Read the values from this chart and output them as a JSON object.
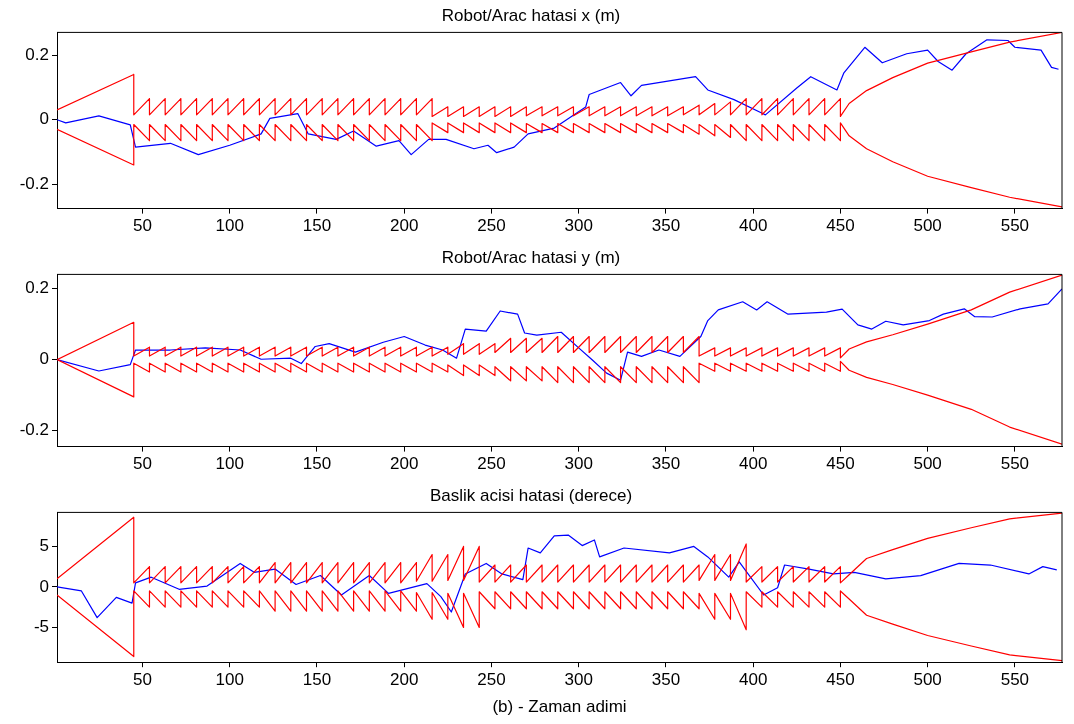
{
  "chart_data": [
    {
      "type": "line",
      "title": "Robot/Arac hatasi x (m)",
      "xlim": [
        1,
        577
      ],
      "xticks": [
        50,
        100,
        150,
        200,
        250,
        300,
        350,
        400,
        450,
        500,
        550
      ],
      "ylim": [
        -0.275,
        0.27
      ],
      "yticks": [
        -0.2,
        0,
        0.2
      ],
      "series": [
        {
          "color": "#ff0000",
          "x": [
            1,
            45,
            45,
            54,
            54,
            63,
            63,
            72,
            72,
            81,
            81,
            90,
            90,
            99,
            99,
            108,
            108,
            117,
            117,
            126,
            126,
            135,
            135,
            144,
            144,
            153,
            153,
            162,
            162,
            171,
            171,
            180,
            180,
            189,
            189,
            198,
            198,
            207,
            207,
            216,
            216,
            225,
            225,
            234,
            234,
            243,
            243,
            252,
            252,
            261,
            261,
            270,
            270,
            279,
            279,
            288,
            288,
            297,
            297,
            306,
            306,
            315,
            315,
            324,
            324,
            333,
            333,
            342,
            342,
            351,
            351,
            360,
            360,
            369,
            369,
            378,
            378,
            387,
            387,
            396,
            396,
            405,
            405,
            414,
            414,
            423,
            423,
            432,
            432,
            441,
            441,
            450,
            450,
            455,
            465,
            480,
            500,
            525,
            547,
            577
          ],
          "values": [
            0.03,
            0.14,
            0.015,
            0.065,
            0.015,
            0.065,
            0.015,
            0.065,
            0.015,
            0.065,
            0.015,
            0.065,
            0.015,
            0.065,
            0.015,
            0.065,
            0.015,
            0.065,
            0.015,
            0.065,
            0.015,
            0.065,
            0.015,
            0.065,
            0.015,
            0.065,
            0.015,
            0.065,
            0.015,
            0.065,
            0.015,
            0.065,
            0.015,
            0.065,
            0.015,
            0.065,
            0.015,
            0.065,
            0.015,
            0.065,
            0.01,
            0.04,
            0.01,
            0.04,
            0.01,
            0.04,
            0.01,
            0.04,
            0.01,
            0.04,
            0.01,
            0.04,
            0.012,
            0.04,
            0.012,
            0.04,
            0.012,
            0.04,
            0.012,
            0.04,
            0.012,
            0.04,
            0.012,
            0.04,
            0.012,
            0.04,
            0.012,
            0.04,
            0.012,
            0.04,
            0.012,
            0.04,
            0.015,
            0.045,
            0.015,
            0.05,
            0.015,
            0.055,
            0.015,
            0.065,
            0.015,
            0.065,
            0.015,
            0.065,
            0.015,
            0.065,
            0.015,
            0.065,
            0.015,
            0.065,
            0.015,
            0.065,
            0.01,
            0.05,
            0.09,
            0.13,
            0.175,
            0.21,
            0.24,
            0.27
          ]
        },
        {
          "color": "#ff0000",
          "x": [
            1,
            45,
            45,
            54,
            54,
            63,
            63,
            72,
            72,
            81,
            81,
            90,
            90,
            99,
            99,
            108,
            108,
            117,
            117,
            126,
            126,
            135,
            135,
            144,
            144,
            153,
            153,
            162,
            162,
            171,
            171,
            180,
            180,
            189,
            189,
            198,
            198,
            207,
            207,
            216,
            216,
            225,
            225,
            234,
            234,
            243,
            243,
            252,
            252,
            261,
            261,
            270,
            270,
            279,
            279,
            288,
            288,
            297,
            297,
            306,
            306,
            315,
            315,
            324,
            324,
            333,
            333,
            342,
            342,
            351,
            351,
            360,
            360,
            369,
            369,
            378,
            378,
            387,
            387,
            396,
            396,
            405,
            405,
            414,
            414,
            423,
            423,
            432,
            432,
            441,
            441,
            450,
            450,
            455,
            465,
            480,
            500,
            525,
            547,
            577
          ],
          "values": [
            -0.03,
            -0.14,
            -0.015,
            -0.065,
            -0.015,
            -0.065,
            -0.015,
            -0.065,
            -0.015,
            -0.065,
            -0.015,
            -0.065,
            -0.015,
            -0.065,
            -0.015,
            -0.065,
            -0.015,
            -0.065,
            -0.015,
            -0.065,
            -0.015,
            -0.065,
            -0.015,
            -0.065,
            -0.015,
            -0.065,
            -0.015,
            -0.065,
            -0.015,
            -0.065,
            -0.015,
            -0.065,
            -0.015,
            -0.065,
            -0.015,
            -0.065,
            -0.015,
            -0.065,
            -0.015,
            -0.065,
            -0.01,
            -0.04,
            -0.01,
            -0.04,
            -0.01,
            -0.04,
            -0.01,
            -0.04,
            -0.01,
            -0.04,
            -0.01,
            -0.04,
            -0.012,
            -0.04,
            -0.012,
            -0.04,
            -0.012,
            -0.04,
            -0.012,
            -0.04,
            -0.012,
            -0.04,
            -0.012,
            -0.04,
            -0.012,
            -0.04,
            -0.012,
            -0.04,
            -0.012,
            -0.04,
            -0.012,
            -0.04,
            -0.015,
            -0.045,
            -0.015,
            -0.05,
            -0.015,
            -0.055,
            -0.015,
            -0.065,
            -0.015,
            -0.065,
            -0.015,
            -0.065,
            -0.015,
            -0.065,
            -0.015,
            -0.065,
            -0.015,
            -0.065,
            -0.015,
            -0.065,
            -0.01,
            -0.05,
            -0.09,
            -0.13,
            -0.175,
            -0.21,
            -0.24,
            -0.27
          ]
        },
        {
          "color": "#0000ff",
          "x": [
            1,
            6,
            25,
            43,
            46,
            66,
            82,
            100,
            118,
            123,
            139,
            145,
            161,
            171,
            184,
            197,
            204,
            214,
            224,
            240,
            248,
            253,
            263,
            271,
            286,
            304,
            306,
            324,
            330,
            336,
            367,
            374,
            389,
            407,
            425,
            433,
            448,
            452,
            464,
            474,
            488,
            500,
            506,
            514,
            522,
            534,
            546,
            550,
            565,
            571,
            575
          ],
          "values": [
            0,
            -0.01,
            0.012,
            -0.016,
            -0.085,
            -0.073,
            -0.108,
            -0.079,
            -0.044,
            0.004,
            0.019,
            -0.044,
            -0.061,
            -0.035,
            -0.082,
            -0.065,
            -0.108,
            -0.061,
            -0.061,
            -0.09,
            -0.079,
            -0.102,
            -0.085,
            -0.044,
            -0.026,
            0.039,
            0.078,
            0.115,
            0.074,
            0.106,
            0.133,
            0.092,
            0.062,
            0.015,
            0.098,
            0.133,
            0.092,
            0.145,
            0.224,
            0.176,
            0.204,
            0.215,
            0.18,
            0.153,
            0.204,
            0.247,
            0.245,
            0.224,
            0.215,
            0.162,
            0.156
          ]
        }
      ]
    },
    {
      "type": "line",
      "title": "Robot/Arac hatasi y (m)",
      "xlim": [
        1,
        577
      ],
      "xticks": [
        50,
        100,
        150,
        200,
        250,
        300,
        350,
        400,
        450,
        500,
        550
      ],
      "ylim": [
        -0.245,
        0.24
      ],
      "yticks": [
        -0.2,
        0,
        0.2
      ],
      "series": [
        {
          "color": "#ff0000",
          "x": [
            1,
            45,
            45,
            54,
            54,
            63,
            63,
            72,
            72,
            81,
            81,
            90,
            90,
            99,
            99,
            108,
            108,
            117,
            117,
            126,
            126,
            135,
            135,
            144,
            144,
            153,
            153,
            162,
            162,
            171,
            171,
            180,
            180,
            189,
            189,
            198,
            198,
            207,
            207,
            216,
            216,
            225,
            225,
            234,
            234,
            243,
            243,
            252,
            252,
            261,
            261,
            270,
            270,
            279,
            279,
            288,
            288,
            297,
            297,
            306,
            306,
            315,
            315,
            324,
            324,
            333,
            333,
            342,
            342,
            351,
            351,
            360,
            360,
            369,
            369,
            378,
            378,
            387,
            387,
            396,
            396,
            405,
            405,
            414,
            414,
            423,
            423,
            432,
            432,
            441,
            441,
            450,
            450,
            455,
            465,
            480,
            500,
            525,
            547,
            577
          ],
          "values": [
            0,
            0.105,
            0.01,
            0.035,
            0.01,
            0.035,
            0.01,
            0.035,
            0.01,
            0.035,
            0.01,
            0.035,
            0.01,
            0.035,
            0.01,
            0.035,
            0.01,
            0.035,
            0.01,
            0.035,
            0.01,
            0.035,
            0.01,
            0.035,
            0.01,
            0.035,
            0.01,
            0.035,
            0.01,
            0.035,
            0.01,
            0.035,
            0.01,
            0.035,
            0.01,
            0.035,
            0.01,
            0.035,
            0.01,
            0.035,
            0.01,
            0.035,
            0.015,
            0.045,
            0.015,
            0.045,
            0.015,
            0.045,
            0.02,
            0.06,
            0.02,
            0.06,
            0.02,
            0.06,
            0.02,
            0.065,
            0.02,
            0.065,
            0.02,
            0.065,
            0.02,
            0.065,
            0.02,
            0.065,
            0.02,
            0.065,
            0.02,
            0.065,
            0.02,
            0.065,
            0.02,
            0.065,
            0.02,
            0.065,
            0.01,
            0.033,
            0.01,
            0.033,
            0.01,
            0.033,
            0.01,
            0.033,
            0.01,
            0.033,
            0.01,
            0.033,
            0.01,
            0.033,
            0.01,
            0.033,
            0.01,
            0.033,
            0.005,
            0.03,
            0.05,
            0.07,
            0.1,
            0.14,
            0.19,
            0.238
          ]
        },
        {
          "color": "#ff0000",
          "x": [
            1,
            45,
            45,
            54,
            54,
            63,
            63,
            72,
            72,
            81,
            81,
            90,
            90,
            99,
            99,
            108,
            108,
            117,
            117,
            126,
            126,
            135,
            135,
            144,
            144,
            153,
            153,
            162,
            162,
            171,
            171,
            180,
            180,
            189,
            189,
            198,
            198,
            207,
            207,
            216,
            216,
            225,
            225,
            234,
            234,
            243,
            243,
            252,
            252,
            261,
            261,
            270,
            270,
            279,
            279,
            288,
            288,
            297,
            297,
            306,
            306,
            315,
            315,
            324,
            324,
            333,
            333,
            342,
            342,
            351,
            351,
            360,
            360,
            369,
            369,
            378,
            378,
            387,
            387,
            396,
            396,
            405,
            405,
            414,
            414,
            423,
            423,
            432,
            432,
            441,
            441,
            450,
            450,
            455,
            465,
            480,
            500,
            525,
            547,
            577
          ],
          "values": [
            0,
            -0.105,
            -0.01,
            -0.035,
            -0.01,
            -0.035,
            -0.01,
            -0.035,
            -0.01,
            -0.035,
            -0.01,
            -0.035,
            -0.01,
            -0.035,
            -0.01,
            -0.035,
            -0.01,
            -0.035,
            -0.01,
            -0.035,
            -0.01,
            -0.035,
            -0.01,
            -0.035,
            -0.01,
            -0.035,
            -0.01,
            -0.035,
            -0.01,
            -0.035,
            -0.01,
            -0.035,
            -0.01,
            -0.035,
            -0.01,
            -0.035,
            -0.01,
            -0.035,
            -0.01,
            -0.035,
            -0.01,
            -0.035,
            -0.015,
            -0.045,
            -0.015,
            -0.045,
            -0.015,
            -0.045,
            -0.02,
            -0.06,
            -0.02,
            -0.06,
            -0.02,
            -0.06,
            -0.02,
            -0.065,
            -0.02,
            -0.065,
            -0.02,
            -0.065,
            -0.02,
            -0.065,
            -0.02,
            -0.065,
            -0.02,
            -0.065,
            -0.02,
            -0.065,
            -0.02,
            -0.065,
            -0.02,
            -0.065,
            -0.02,
            -0.065,
            -0.01,
            -0.033,
            -0.01,
            -0.033,
            -0.01,
            -0.033,
            -0.01,
            -0.033,
            -0.01,
            -0.033,
            -0.01,
            -0.033,
            -0.01,
            -0.033,
            -0.01,
            -0.033,
            -0.01,
            -0.033,
            -0.005,
            -0.03,
            -0.05,
            -0.07,
            -0.1,
            -0.14,
            -0.19,
            -0.238
          ]
        },
        {
          "color": "#0000ff",
          "x": [
            1,
            25,
            43,
            46,
            66,
            86,
            106,
            118,
            135,
            141,
            149,
            157,
            172,
            188,
            200,
            212,
            222,
            230,
            235,
            247,
            255,
            265,
            269,
            276,
            290,
            300,
            308,
            316,
            324,
            328,
            336,
            346,
            358,
            370,
            374,
            380,
            394,
            402,
            408,
            420,
            442,
            451,
            460,
            468,
            476,
            486,
            501,
            509,
            521,
            527,
            537,
            553,
            569,
            577
          ],
          "values": [
            0,
            -0.032,
            -0.014,
            0.027,
            0.027,
            0.033,
            0.027,
            0.001,
            0.004,
            -0.011,
            0.037,
            0.045,
            0.021,
            0.049,
            0.065,
            0.041,
            0.027,
            0.004,
            0.086,
            0.08,
            0.137,
            0.128,
            0.075,
            0.069,
            0.077,
            0.033,
            -0.002,
            -0.038,
            -0.058,
            0.021,
            0.009,
            0.027,
            0.009,
            0.065,
            0.11,
            0.14,
            0.163,
            0.14,
            0.163,
            0.128,
            0.134,
            0.142,
            0.098,
            0.086,
            0.108,
            0.098,
            0.11,
            0.128,
            0.143,
            0.121,
            0.12,
            0.143,
            0.157,
            0.199
          ]
        }
      ]
    },
    {
      "type": "line",
      "title": "Baslik acisi hatasi (derece)",
      "xlabel": "(b) - Zaman adimi",
      "xlim": [
        1,
        577
      ],
      "xticks": [
        50,
        100,
        150,
        200,
        250,
        300,
        350,
        400,
        450,
        500,
        550
      ],
      "ylim": [
        -9.3,
        9.2
      ],
      "yticks": [
        -5,
        0,
        5
      ],
      "series": [
        {
          "color": "#ff0000",
          "x": [
            1,
            45,
            45,
            54,
            54,
            63,
            63,
            72,
            72,
            81,
            81,
            90,
            90,
            99,
            99,
            108,
            108,
            117,
            117,
            126,
            126,
            135,
            135,
            144,
            144,
            153,
            153,
            162,
            162,
            171,
            171,
            180,
            180,
            189,
            189,
            198,
            198,
            207,
            207,
            216,
            216,
            225,
            225,
            234,
            234,
            243,
            243,
            252,
            252,
            261,
            261,
            270,
            270,
            279,
            279,
            288,
            288,
            297,
            297,
            306,
            306,
            315,
            315,
            324,
            324,
            333,
            333,
            342,
            342,
            351,
            351,
            360,
            360,
            369,
            369,
            378,
            378,
            387,
            387,
            396,
            396,
            405,
            405,
            414,
            414,
            423,
            423,
            432,
            432,
            441,
            441,
            450,
            450,
            455,
            465,
            480,
            500,
            525,
            547,
            577
          ],
          "values": [
            1,
            8.6,
            0.5,
            2.5,
            0.5,
            2.5,
            0.5,
            2.5,
            0.5,
            2.5,
            0.5,
            2.5,
            0.5,
            2.5,
            0.5,
            2.5,
            0.5,
            2.5,
            0.5,
            3,
            0.5,
            3,
            0.5,
            3,
            0.5,
            3,
            0.5,
            3,
            0.5,
            3,
            0.5,
            3,
            0.5,
            3,
            0.5,
            3,
            0.5,
            3,
            0.7,
            4,
            0.7,
            4,
            0.8,
            5,
            0.8,
            5,
            0.6,
            2.7,
            0.6,
            2.7,
            0.6,
            2.7,
            0.6,
            2.7,
            0.6,
            2.7,
            0.6,
            2.7,
            0.6,
            2.7,
            0.6,
            2.7,
            0.6,
            2.7,
            0.6,
            2.7,
            0.6,
            2.7,
            0.6,
            2.7,
            0.6,
            2.7,
            0.6,
            2.7,
            0.8,
            4,
            0.8,
            4,
            0.8,
            5.3,
            0.6,
            2.5,
            0.6,
            2.5,
            0.6,
            2.5,
            0.6,
            2.5,
            0.6,
            2.5,
            0.6,
            2.5,
            0.5,
            1.5,
            3.5,
            4.6,
            6,
            7.3,
            8.4,
            9.1
          ]
        },
        {
          "color": "#ff0000",
          "x": [
            1,
            45,
            45,
            54,
            54,
            63,
            63,
            72,
            72,
            81,
            81,
            90,
            90,
            99,
            99,
            108,
            108,
            117,
            117,
            126,
            126,
            135,
            135,
            144,
            144,
            153,
            153,
            162,
            162,
            171,
            171,
            180,
            180,
            189,
            189,
            198,
            198,
            207,
            207,
            216,
            216,
            225,
            225,
            234,
            234,
            243,
            243,
            252,
            252,
            261,
            261,
            270,
            270,
            279,
            279,
            288,
            288,
            297,
            297,
            306,
            306,
            315,
            315,
            324,
            324,
            333,
            333,
            342,
            342,
            351,
            351,
            360,
            360,
            369,
            369,
            378,
            378,
            387,
            387,
            396,
            396,
            405,
            405,
            414,
            414,
            423,
            423,
            432,
            432,
            441,
            441,
            450,
            450,
            455,
            465,
            480,
            500,
            525,
            547,
            577
          ],
          "values": [
            -1,
            -8.6,
            -0.5,
            -2.5,
            -0.5,
            -2.5,
            -0.5,
            -2.5,
            -0.5,
            -2.5,
            -0.5,
            -2.5,
            -0.5,
            -2.5,
            -0.5,
            -2.5,
            -0.5,
            -2.5,
            -0.5,
            -3,
            -0.5,
            -3,
            -0.5,
            -3,
            -0.5,
            -3,
            -0.5,
            -3,
            -0.5,
            -3,
            -0.5,
            -3,
            -0.5,
            -3,
            -0.5,
            -3,
            -0.5,
            -3,
            -0.7,
            -4,
            -0.7,
            -4,
            -0.8,
            -5,
            -0.8,
            -5,
            -0.6,
            -2.7,
            -0.6,
            -2.7,
            -0.6,
            -2.7,
            -0.6,
            -2.7,
            -0.6,
            -2.7,
            -0.6,
            -2.7,
            -0.6,
            -2.7,
            -0.6,
            -2.7,
            -0.6,
            -2.7,
            -0.6,
            -2.7,
            -0.6,
            -2.7,
            -0.6,
            -2.7,
            -0.6,
            -2.7,
            -0.6,
            -2.7,
            -0.8,
            -4,
            -0.8,
            -4,
            -0.8,
            -5.3,
            -0.6,
            -2.5,
            -0.6,
            -2.5,
            -0.6,
            -2.5,
            -0.6,
            -2.5,
            -0.6,
            -2.5,
            -0.6,
            -2.5,
            -0.5,
            -1.5,
            -3.5,
            -4.6,
            -6,
            -7.3,
            -8.4,
            -9.1
          ]
        },
        {
          "color": "#0000ff",
          "x": [
            1,
            15,
            24,
            35,
            44,
            46,
            55,
            71,
            87,
            106,
            114,
            126,
            138,
            152,
            164,
            180,
            191,
            213,
            221,
            227,
            235,
            247,
            256,
            268,
            271,
            278,
            286,
            294,
            302,
            309,
            312,
            326,
            352,
            366,
            374,
            386,
            392,
            406,
            414,
            418,
            432,
            446,
            458,
            476,
            496,
            518,
            536,
            558,
            566,
            574
          ],
          "values": [
            0,
            -0.5,
            -3.8,
            -1.3,
            -2,
            0.5,
            1.2,
            -0.3,
            0.1,
            2.9,
            1.8,
            2.2,
            0.3,
            1.4,
            -1,
            1.4,
            -0.8,
            0.4,
            -1.2,
            -3.1,
            1.6,
            2.9,
            1.6,
            0.9,
            4.8,
            4.2,
            6.3,
            6.4,
            5.1,
            5.8,
            3.7,
            4.8,
            4.2,
            5,
            3.7,
            1.2,
            3.1,
            -1,
            -0.1,
            2.7,
            2.2,
            1.6,
            1.8,
            1,
            1.4,
            2.9,
            2.7,
            1.6,
            2.5,
            2.1
          ]
        }
      ]
    }
  ]
}
